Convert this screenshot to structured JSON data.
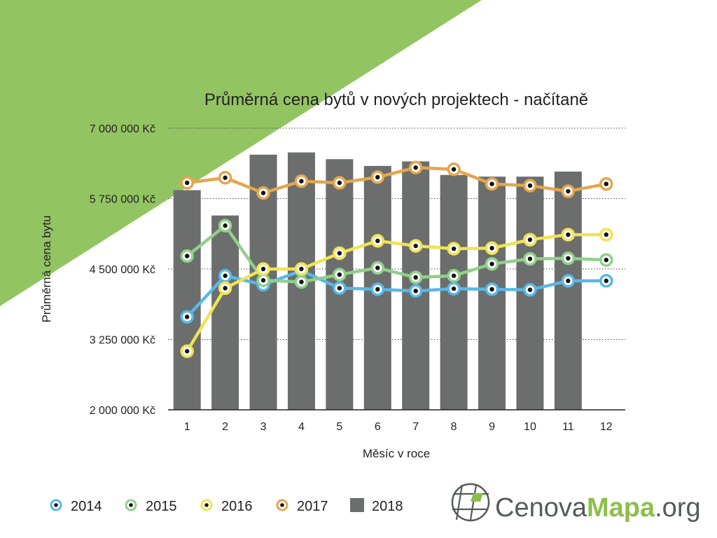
{
  "colors": {
    "background_triangle": "#93c462",
    "bar": "#6b6e6c",
    "grid": "#444444",
    "series": {
      "2014": "#58b8e8",
      "2015": "#90d08a",
      "2016": "#f0e354",
      "2017": "#e5a54e"
    },
    "marker_dot": "#111111",
    "logo_gray": "#555b5a",
    "logo_green": "#8cbf4a"
  },
  "logo": {
    "part1": "Cenova",
    "part2": "Mapa",
    "part3": ".org",
    "icon": "globe-grid-icon"
  },
  "chart_data": {
    "type": "bar",
    "title": "Průměrná cena bytů v nových projektech - načítaně",
    "xlabel": "Měsíc v roce",
    "ylabel": "Průměrná cena bytu",
    "ylim": [
      2000000,
      7000000
    ],
    "yticks": [
      2000000,
      3250000,
      4500000,
      5750000,
      7000000
    ],
    "ytick_labels": [
      "2 000 000 Kč",
      "3 250 000 Kč",
      "4 500 000 Kč",
      "5 750 000 Kč",
      "7 000 000 Kč"
    ],
    "categories": [
      "1",
      "2",
      "3",
      "4",
      "5",
      "6",
      "7",
      "8",
      "9",
      "10",
      "11",
      "12"
    ],
    "grid": true,
    "legend_position": "bottom-left",
    "bar_series": {
      "name": "2018",
      "values": [
        5900000,
        5450000,
        6530000,
        6570000,
        6450000,
        6330000,
        6410000,
        6170000,
        6140000,
        6140000,
        6230000,
        null
      ]
    },
    "series": [
      {
        "name": "2014",
        "values": [
          3650000,
          4380000,
          4220000,
          4470000,
          4160000,
          4140000,
          4110000,
          4150000,
          4140000,
          4130000,
          4290000,
          4290000
        ]
      },
      {
        "name": "2015",
        "values": [
          4730000,
          5270000,
          4300000,
          4270000,
          4400000,
          4520000,
          4350000,
          4380000,
          4590000,
          4680000,
          4690000,
          4660000
        ]
      },
      {
        "name": "2016",
        "values": [
          3040000,
          4160000,
          4500000,
          4500000,
          4780000,
          5000000,
          4910000,
          4860000,
          4870000,
          5020000,
          5110000,
          5110000
        ]
      },
      {
        "name": "2017",
        "values": [
          6030000,
          6120000,
          5850000,
          6060000,
          6030000,
          6130000,
          6300000,
          6270000,
          6010000,
          5980000,
          5880000,
          6010000
        ]
      }
    ]
  }
}
